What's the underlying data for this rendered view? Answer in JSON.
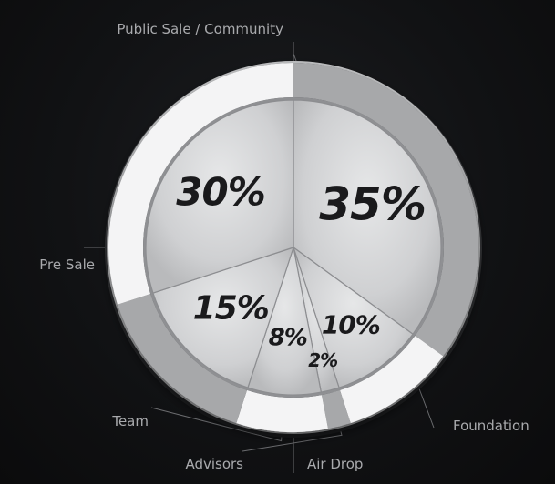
{
  "chart_data": {
    "type": "pie",
    "title": "",
    "slices": [
      {
        "label": "Foundation",
        "value": 35,
        "value_label": "35%"
      },
      {
        "label": "Air Drop",
        "value": 10,
        "value_label": "10%"
      },
      {
        "label": "Advisors",
        "value": 2,
        "value_label": "2%"
      },
      {
        "label": "Team",
        "value": 8,
        "value_label": "8%"
      },
      {
        "label": "Pre Sale",
        "value": 15,
        "value_label": "15%"
      },
      {
        "label": "Public Sale / Community",
        "value": 30,
        "value_label": "30%"
      }
    ],
    "start": "top",
    "direction": "clockwise",
    "colors": {
      "background": "#111214",
      "ring_light": "#f4f4f5",
      "ring_dark": "#a7a8aa",
      "inner_face": "#cfd0d2",
      "divider": "#8c8d90",
      "value_text": "#1a1a1c",
      "callout_text": "#a9aaad",
      "callout_line": "#6a6b6e"
    }
  }
}
